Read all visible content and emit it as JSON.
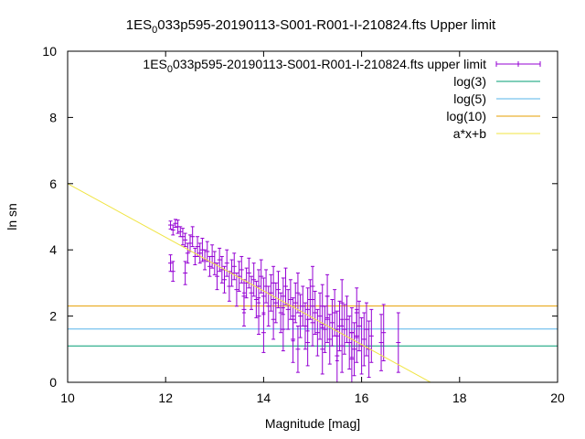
{
  "chart_data": {
    "type": "scatter",
    "title": "1ES 0 033p595-20190113-S001-R001-I-210824.fts Upper limit",
    "title_parts": {
      "pre": "1ES",
      "sub": "0",
      "post": "033p595-20190113-S001-R001-I-210824.fts Upper limit"
    },
    "xlabel": "Magnitude [mag]",
    "ylabel": "ln sn",
    "xlim": [
      10,
      20
    ],
    "ylim": [
      0,
      10
    ],
    "xticks": [
      "10",
      "12",
      "14",
      "16",
      "18",
      "20"
    ],
    "yticks": [
      "0",
      "2",
      "4",
      "6",
      "8",
      "10"
    ],
    "grid": false,
    "legend_position": "top-right",
    "legend": [
      {
        "label_parts": {
          "pre": "1ES",
          "sub": "0",
          "post": "033p595-20190113-S001-R001-I-210824.fts upper limit"
        },
        "style": "errorbar",
        "color": "#9400d3"
      },
      {
        "label": "log(3)",
        "style": "line",
        "color": "#009e73"
      },
      {
        "label": "log(5)",
        "style": "line",
        "color": "#56b4e9"
      },
      {
        "label": "log(10)",
        "style": "line",
        "color": "#e69f00"
      },
      {
        "label": "a*x+b",
        "style": "line",
        "color": "#f0e442"
      }
    ],
    "series": [
      {
        "name": "1ES 0 033p595-20190113-S001-R001-I-210824.fts upper limit",
        "color": "#9400d3",
        "points": [
          [
            12.1,
            4.75,
            0.12
          ],
          [
            12.15,
            4.6,
            0.15
          ],
          [
            12.2,
            4.8,
            0.12
          ],
          [
            12.25,
            4.7,
            0.2
          ],
          [
            12.3,
            4.55,
            0.15
          ],
          [
            12.1,
            3.6,
            0.25
          ],
          [
            12.15,
            3.35,
            0.3
          ],
          [
            12.35,
            4.4,
            0.25
          ],
          [
            12.4,
            4.3,
            0.2
          ],
          [
            12.45,
            3.9,
            0.3
          ],
          [
            12.4,
            3.3,
            0.35
          ],
          [
            12.5,
            4.2,
            0.25
          ],
          [
            12.55,
            4.4,
            0.3
          ],
          [
            12.6,
            3.8,
            0.25
          ],
          [
            12.65,
            4.1,
            0.3
          ],
          [
            12.7,
            3.9,
            0.3
          ],
          [
            12.75,
            4.0,
            0.35
          ],
          [
            12.8,
            3.7,
            0.3
          ],
          [
            12.85,
            3.95,
            0.3
          ],
          [
            12.9,
            3.5,
            0.3
          ],
          [
            12.95,
            3.8,
            0.35
          ],
          [
            13.0,
            3.6,
            0.35
          ],
          [
            13.05,
            3.2,
            0.4
          ],
          [
            13.1,
            3.7,
            0.35
          ],
          [
            13.15,
            3.4,
            0.4
          ],
          [
            13.2,
            3.1,
            0.4
          ],
          [
            13.25,
            3.6,
            0.4
          ],
          [
            13.3,
            2.9,
            0.45
          ],
          [
            13.35,
            3.3,
            0.4
          ],
          [
            13.4,
            3.5,
            0.4
          ],
          [
            13.45,
            2.8,
            0.5
          ],
          [
            13.5,
            3.2,
            0.45
          ],
          [
            13.55,
            3.4,
            0.4
          ],
          [
            13.6,
            2.6,
            0.5
          ],
          [
            13.65,
            3.0,
            0.45
          ],
          [
            13.7,
            3.3,
            0.45
          ],
          [
            13.75,
            2.7,
            0.5
          ],
          [
            13.8,
            3.1,
            0.5
          ],
          [
            13.85,
            2.5,
            0.55
          ],
          [
            13.9,
            2.9,
            0.5
          ],
          [
            13.95,
            3.2,
            0.5
          ],
          [
            14.0,
            2.6,
            0.55
          ],
          [
            14.05,
            2.9,
            0.5
          ],
          [
            14.1,
            2.3,
            0.6
          ],
          [
            14.15,
            2.7,
            0.55
          ],
          [
            14.2,
            3.0,
            0.5
          ],
          [
            14.25,
            2.4,
            0.6
          ],
          [
            14.3,
            2.8,
            0.55
          ],
          [
            14.35,
            2.1,
            0.6
          ],
          [
            14.4,
            2.6,
            0.55
          ],
          [
            14.45,
            2.9,
            0.55
          ],
          [
            14.5,
            2.2,
            0.6
          ],
          [
            14.55,
            2.5,
            0.6
          ],
          [
            14.6,
            1.9,
            0.65
          ],
          [
            14.65,
            2.4,
            0.6
          ],
          [
            14.7,
            2.7,
            0.6
          ],
          [
            14.75,
            2.0,
            0.65
          ],
          [
            14.8,
            2.3,
            0.6
          ],
          [
            14.85,
            1.7,
            0.7
          ],
          [
            14.9,
            2.2,
            0.65
          ],
          [
            14.95,
            2.5,
            0.6
          ],
          [
            15.0,
            1.8,
            0.7
          ],
          [
            15.05,
            2.1,
            0.65
          ],
          [
            15.1,
            1.5,
            0.7
          ],
          [
            15.15,
            2.0,
            0.7
          ],
          [
            15.2,
            2.3,
            0.65
          ],
          [
            15.25,
            1.6,
            0.7
          ],
          [
            15.3,
            1.9,
            0.7
          ],
          [
            15.35,
            1.3,
            0.75
          ],
          [
            15.4,
            1.8,
            0.7
          ],
          [
            15.45,
            2.1,
            0.7
          ],
          [
            15.5,
            1.4,
            0.75
          ],
          [
            15.55,
            1.7,
            0.75
          ],
          [
            15.6,
            1.1,
            0.8
          ],
          [
            15.65,
            1.6,
            0.75
          ],
          [
            15.7,
            1.9,
            0.7
          ],
          [
            15.75,
            1.2,
            0.8
          ],
          [
            15.8,
            1.5,
            0.75
          ],
          [
            15.85,
            1.0,
            0.8
          ],
          [
            15.9,
            1.4,
            0.8
          ],
          [
            15.95,
            1.7,
            0.75
          ],
          [
            16.0,
            1.1,
            0.85
          ],
          [
            16.05,
            1.3,
            0.8
          ],
          [
            16.1,
            1.6,
            0.8
          ],
          [
            16.15,
            1.0,
            0.85
          ],
          [
            16.2,
            1.4,
            0.8
          ],
          [
            16.4,
            1.2,
            0.85
          ],
          [
            16.45,
            1.5,
            0.85
          ],
          [
            16.75,
            1.2,
            0.9
          ],
          [
            14.2,
            1.9,
            0.6
          ],
          [
            14.6,
            1.3,
            0.7
          ],
          [
            14.9,
            1.2,
            0.7
          ],
          [
            15.2,
            1.0,
            0.75
          ],
          [
            15.5,
            0.8,
            0.8
          ],
          [
            15.8,
            0.7,
            0.8
          ],
          [
            13.9,
            2.0,
            0.55
          ],
          [
            14.4,
            1.6,
            0.65
          ],
          [
            15.0,
            2.9,
            0.6
          ],
          [
            15.3,
            2.6,
            0.65
          ],
          [
            15.6,
            2.4,
            0.7
          ],
          [
            15.9,
            2.1,
            0.75
          ],
          [
            13.6,
            2.2,
            0.5
          ],
          [
            14.0,
            1.5,
            0.6
          ],
          [
            14.7,
            1.0,
            0.7
          ]
        ]
      }
    ],
    "hlines": [
      {
        "name": "log(3)",
        "y": 1.0986,
        "color": "#009e73"
      },
      {
        "name": "log(5)",
        "y": 1.6094,
        "color": "#56b4e9"
      },
      {
        "name": "log(10)",
        "y": 2.3026,
        "color": "#e69f00"
      }
    ],
    "fit_line": {
      "name": "a*x+b",
      "a": -0.81,
      "b": 14.1,
      "color": "#f0e442"
    }
  }
}
